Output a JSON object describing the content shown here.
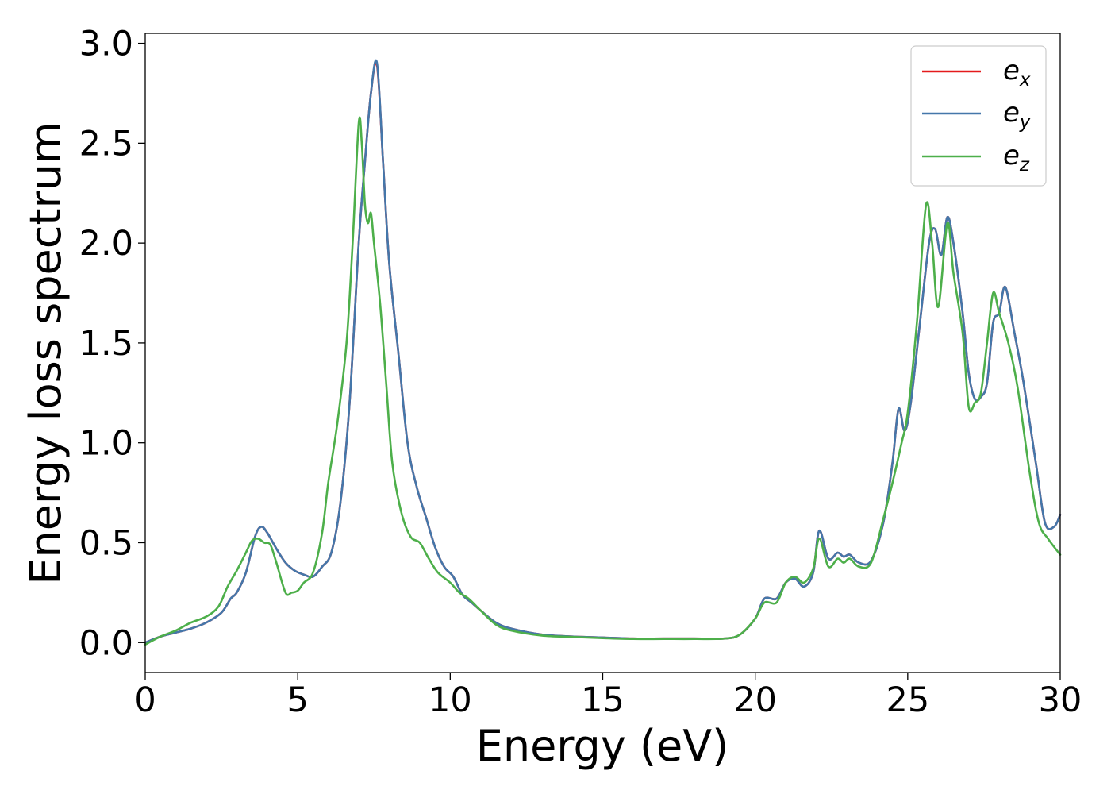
{
  "chart_data": {
    "type": "line",
    "title": "",
    "xlabel": "Energy (eV)",
    "ylabel": "Energy loss spectrum",
    "xlim": [
      0,
      30
    ],
    "ylim": [
      -0.15,
      3.05
    ],
    "xticks": [
      0,
      5,
      10,
      15,
      20,
      25,
      30
    ],
    "xtick_labels": [
      "0",
      "5",
      "10",
      "15",
      "20",
      "25",
      "30"
    ],
    "yticks": [
      0.0,
      0.5,
      1.0,
      1.5,
      2.0,
      2.5,
      3.0
    ],
    "ytick_labels": [
      "0.0",
      "0.5",
      "1.0",
      "1.5",
      "2.0",
      "2.5",
      "3.0"
    ],
    "grid": false,
    "legend": "top-right",
    "series": [
      {
        "name": "e_x",
        "label_base": "e",
        "label_sub": "x",
        "color": "#e41a1c",
        "x": [
          0,
          0.5,
          1.0,
          1.5,
          2.0,
          2.5,
          2.8,
          3.0,
          3.3,
          3.6,
          3.8,
          4.0,
          4.3,
          4.6,
          4.9,
          5.2,
          5.5,
          5.8,
          6.1,
          6.4,
          6.7,
          7.0,
          7.2,
          7.4,
          7.6,
          7.8,
          8.0,
          8.3,
          8.6,
          8.9,
          9.2,
          9.5,
          9.8,
          10.1,
          10.4,
          10.7,
          11.0,
          11.5,
          12.0,
          13.0,
          14.0,
          15.0,
          16.0,
          17.0,
          18.0,
          19.0,
          19.5,
          20.0,
          20.3,
          20.7,
          21.0,
          21.3,
          21.6,
          21.9,
          22.1,
          22.4,
          22.7,
          22.9,
          23.1,
          23.4,
          23.8,
          24.2,
          24.5,
          24.7,
          24.9,
          25.1,
          25.4,
          25.7,
          25.9,
          26.1,
          26.3,
          26.5,
          26.8,
          27.0,
          27.2,
          27.4,
          27.6,
          27.8,
          28.0,
          28.2,
          28.5,
          28.8,
          29.2,
          29.5,
          29.8,
          30.0
        ],
        "y": [
          0.0,
          0.03,
          0.05,
          0.07,
          0.1,
          0.15,
          0.22,
          0.25,
          0.35,
          0.53,
          0.58,
          0.55,
          0.47,
          0.4,
          0.36,
          0.34,
          0.33,
          0.38,
          0.45,
          0.7,
          1.2,
          2.0,
          2.4,
          2.75,
          2.89,
          2.4,
          1.9,
          1.45,
          1.0,
          0.78,
          0.63,
          0.48,
          0.38,
          0.33,
          0.24,
          0.2,
          0.16,
          0.1,
          0.07,
          0.04,
          0.03,
          0.025,
          0.02,
          0.02,
          0.02,
          0.02,
          0.04,
          0.12,
          0.22,
          0.22,
          0.3,
          0.32,
          0.28,
          0.35,
          0.56,
          0.42,
          0.45,
          0.43,
          0.44,
          0.4,
          0.41,
          0.6,
          0.9,
          1.17,
          1.06,
          1.2,
          1.6,
          2.0,
          2.07,
          1.94,
          2.13,
          2.0,
          1.65,
          1.35,
          1.22,
          1.23,
          1.3,
          1.6,
          1.65,
          1.78,
          1.55,
          1.3,
          0.9,
          0.6,
          0.58,
          0.64
        ]
      },
      {
        "name": "e_y",
        "label_base": "e",
        "label_sub": "y",
        "color": "#4477aa",
        "x": [
          0,
          0.5,
          1.0,
          1.5,
          2.0,
          2.5,
          2.8,
          3.0,
          3.3,
          3.6,
          3.8,
          4.0,
          4.3,
          4.6,
          4.9,
          5.2,
          5.5,
          5.8,
          6.1,
          6.4,
          6.7,
          7.0,
          7.2,
          7.4,
          7.6,
          7.8,
          8.0,
          8.3,
          8.6,
          8.9,
          9.2,
          9.5,
          9.8,
          10.1,
          10.4,
          10.7,
          11.0,
          11.5,
          12.0,
          13.0,
          14.0,
          15.0,
          16.0,
          17.0,
          18.0,
          19.0,
          19.5,
          20.0,
          20.3,
          20.7,
          21.0,
          21.3,
          21.6,
          21.9,
          22.1,
          22.4,
          22.7,
          22.9,
          23.1,
          23.4,
          23.8,
          24.2,
          24.5,
          24.7,
          24.9,
          25.1,
          25.4,
          25.7,
          25.9,
          26.1,
          26.3,
          26.5,
          26.8,
          27.0,
          27.2,
          27.4,
          27.6,
          27.8,
          28.0,
          28.2,
          28.5,
          28.8,
          29.2,
          29.5,
          29.8,
          30.0
        ],
        "y": [
          0.0,
          0.03,
          0.05,
          0.07,
          0.1,
          0.15,
          0.22,
          0.25,
          0.35,
          0.53,
          0.58,
          0.55,
          0.47,
          0.4,
          0.36,
          0.34,
          0.33,
          0.38,
          0.45,
          0.7,
          1.2,
          2.0,
          2.4,
          2.75,
          2.9,
          2.4,
          1.9,
          1.45,
          1.0,
          0.78,
          0.63,
          0.48,
          0.38,
          0.33,
          0.24,
          0.2,
          0.16,
          0.1,
          0.07,
          0.04,
          0.03,
          0.025,
          0.02,
          0.02,
          0.02,
          0.02,
          0.04,
          0.12,
          0.22,
          0.22,
          0.3,
          0.32,
          0.28,
          0.35,
          0.56,
          0.42,
          0.45,
          0.43,
          0.44,
          0.4,
          0.41,
          0.6,
          0.9,
          1.17,
          1.06,
          1.2,
          1.6,
          2.0,
          2.07,
          1.94,
          2.13,
          2.0,
          1.65,
          1.35,
          1.22,
          1.23,
          1.3,
          1.6,
          1.65,
          1.78,
          1.55,
          1.3,
          0.9,
          0.6,
          0.58,
          0.64
        ]
      },
      {
        "name": "e_z",
        "label_base": "e",
        "label_sub": "z",
        "color": "#4daf4a",
        "x": [
          0,
          0.5,
          1.0,
          1.5,
          2.0,
          2.4,
          2.7,
          3.0,
          3.3,
          3.5,
          3.7,
          3.9,
          4.1,
          4.3,
          4.6,
          4.8,
          5.0,
          5.2,
          5.5,
          5.8,
          6.0,
          6.3,
          6.6,
          6.8,
          7.0,
          7.1,
          7.2,
          7.3,
          7.4,
          7.5,
          7.7,
          7.9,
          8.1,
          8.4,
          8.7,
          9.0,
          9.3,
          9.6,
          10.0,
          10.3,
          10.6,
          11.0,
          11.5,
          12.0,
          13.0,
          14.0,
          15.0,
          16.0,
          17.0,
          18.0,
          19.0,
          19.5,
          20.0,
          20.3,
          20.7,
          21.0,
          21.3,
          21.6,
          21.9,
          22.1,
          22.4,
          22.7,
          22.9,
          23.1,
          23.4,
          23.8,
          24.2,
          24.5,
          24.8,
          25.0,
          25.3,
          25.6,
          25.8,
          26.0,
          26.3,
          26.5,
          26.8,
          27.0,
          27.2,
          27.4,
          27.6,
          27.8,
          28.0,
          28.3,
          28.6,
          29.0,
          29.3,
          29.6,
          30.0
        ],
        "y": [
          -0.01,
          0.03,
          0.06,
          0.1,
          0.13,
          0.18,
          0.28,
          0.36,
          0.45,
          0.51,
          0.52,
          0.5,
          0.49,
          0.4,
          0.25,
          0.25,
          0.26,
          0.3,
          0.35,
          0.55,
          0.8,
          1.1,
          1.5,
          2.0,
          2.6,
          2.5,
          2.2,
          2.1,
          2.15,
          2.0,
          1.7,
          1.3,
          0.9,
          0.65,
          0.53,
          0.5,
          0.42,
          0.35,
          0.3,
          0.25,
          0.22,
          0.16,
          0.09,
          0.06,
          0.035,
          0.028,
          0.022,
          0.018,
          0.018,
          0.018,
          0.02,
          0.04,
          0.12,
          0.2,
          0.2,
          0.3,
          0.33,
          0.3,
          0.37,
          0.52,
          0.38,
          0.42,
          0.4,
          0.42,
          0.38,
          0.4,
          0.62,
          0.8,
          1.0,
          1.15,
          1.6,
          2.19,
          2.0,
          1.68,
          2.1,
          1.85,
          1.55,
          1.18,
          1.2,
          1.25,
          1.5,
          1.75,
          1.65,
          1.5,
          1.28,
          0.85,
          0.6,
          0.52,
          0.44
        ]
      }
    ]
  }
}
